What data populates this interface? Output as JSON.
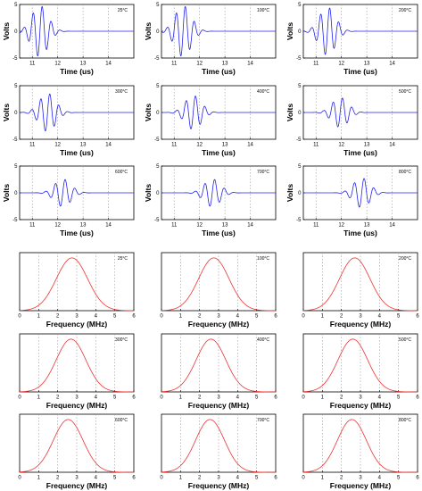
{
  "chart_data": {
    "time_panels": {
      "type": "line",
      "xlabel": "Time (us)",
      "ylabel": "Volts",
      "xlim": [
        10.5,
        15
      ],
      "ylim": [
        -5,
        5
      ],
      "xticks": [
        11,
        12,
        13,
        14
      ],
      "yticks": [
        -5,
        0,
        5
      ],
      "grid": "vertical dotted",
      "line_color": "#2222ee",
      "panels": [
        {
          "annotation": "25°C",
          "center": 11.3,
          "amplitude": 4.8,
          "frequency_mhz": 2.8,
          "width_us": 0.32
        },
        {
          "annotation": "100°C",
          "center": 11.35,
          "amplitude": 4.8,
          "frequency_mhz": 2.8,
          "width_us": 0.32
        },
        {
          "annotation": "200°C",
          "center": 11.45,
          "amplitude": 4.5,
          "frequency_mhz": 2.8,
          "width_us": 0.32
        },
        {
          "annotation": "300°C",
          "center": 11.6,
          "amplitude": 3.6,
          "frequency_mhz": 2.8,
          "width_us": 0.32
        },
        {
          "annotation": "400°C",
          "center": 11.75,
          "amplitude": 3.2,
          "frequency_mhz": 2.7,
          "width_us": 0.32
        },
        {
          "annotation": "500°C",
          "center": 11.95,
          "amplitude": 2.8,
          "frequency_mhz": 2.7,
          "width_us": 0.32
        },
        {
          "annotation": "600°C",
          "center": 12.2,
          "amplitude": 2.6,
          "frequency_mhz": 2.6,
          "width_us": 0.32
        },
        {
          "annotation": "700°C",
          "center": 12.5,
          "amplitude": 2.6,
          "frequency_mhz": 2.6,
          "width_us": 0.32
        },
        {
          "annotation": "800°C",
          "center": 12.8,
          "amplitude": 2.8,
          "frequency_mhz": 2.6,
          "width_us": 0.32
        }
      ]
    },
    "frequency_panels": {
      "type": "line",
      "xlabel": "Frequency (MHz)",
      "ylabel": "",
      "xlim": [
        0,
        6
      ],
      "ylim": [
        0,
        1.1
      ],
      "xticks": [
        0,
        1,
        2,
        3,
        4,
        5,
        6
      ],
      "grid": "vertical dotted",
      "line_color": "#ee3333",
      "panels": [
        {
          "annotation": "25°C",
          "center_mhz": 2.75,
          "sigma_mhz": 0.82
        },
        {
          "annotation": "100°C",
          "center_mhz": 2.75,
          "sigma_mhz": 0.8
        },
        {
          "annotation": "200°C",
          "center_mhz": 2.7,
          "sigma_mhz": 0.8
        },
        {
          "annotation": "300°C",
          "center_mhz": 2.7,
          "sigma_mhz": 0.78
        },
        {
          "annotation": "400°C",
          "center_mhz": 2.6,
          "sigma_mhz": 0.78
        },
        {
          "annotation": "500°C",
          "center_mhz": 2.6,
          "sigma_mhz": 0.78
        },
        {
          "annotation": "600°C",
          "center_mhz": 2.55,
          "sigma_mhz": 0.78
        },
        {
          "annotation": "700°C",
          "center_mhz": 2.55,
          "sigma_mhz": 0.76
        },
        {
          "annotation": "800°C",
          "center_mhz": 2.55,
          "sigma_mhz": 0.76
        }
      ]
    }
  }
}
